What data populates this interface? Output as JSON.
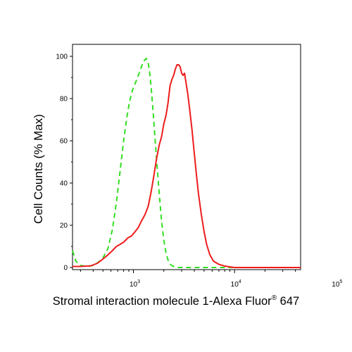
{
  "chart_data": {
    "type": "line",
    "title": "",
    "xlabel": "Stromal interaction molecule 1-Alexa Fluor",
    "xlabel_superscript": "®",
    "xlabel_suffix": " 647",
    "ylabel": "Cell Counts (% Max)",
    "x_scale": "log",
    "xlim": [
      250,
      45000
    ],
    "ylim": [
      0,
      100
    ],
    "y_ticks": [
      {
        "value": 0,
        "label": "0"
      },
      {
        "value": 20,
        "label": "20"
      },
      {
        "value": 40,
        "label": "40"
      },
      {
        "value": 60,
        "label": "60"
      },
      {
        "value": 80,
        "label": "80"
      },
      {
        "value": 100,
        "label": "100"
      }
    ],
    "x_ticks": [
      {
        "value": 1000,
        "base": "10",
        "exp": "3"
      },
      {
        "value": 10000,
        "base": "10",
        "exp": "4"
      },
      {
        "value": 100000,
        "base": "10",
        "exp": "5"
      }
    ],
    "grid": false,
    "legend": "none",
    "series": [
      {
        "color": "#33dd22",
        "line_style": "dashed",
        "points": [
          [
            250,
            8
          ],
          [
            270,
            3
          ],
          [
            300,
            1
          ],
          [
            350,
            0.5
          ],
          [
            400,
            1
          ],
          [
            450,
            2.5
          ],
          [
            500,
            4.5
          ],
          [
            560,
            9
          ],
          [
            620,
            18
          ],
          [
            680,
            31
          ],
          [
            740,
            46
          ],
          [
            800,
            60
          ],
          [
            860,
            71
          ],
          [
            920,
            79
          ],
          [
            980,
            84
          ],
          [
            1040,
            87
          ],
          [
            1100,
            90
          ],
          [
            1160,
            93
          ],
          [
            1220,
            96
          ],
          [
            1280,
            98
          ],
          [
            1340,
            99
          ],
          [
            1400,
            97
          ],
          [
            1450,
            92
          ],
          [
            1500,
            85
          ],
          [
            1560,
            75
          ],
          [
            1620,
            64
          ],
          [
            1700,
            50
          ],
          [
            1800,
            35
          ],
          [
            1900,
            22
          ],
          [
            2000,
            13
          ],
          [
            2100,
            7
          ],
          [
            2200,
            3.5
          ],
          [
            2350,
            1.2
          ],
          [
            2500,
            0.5
          ],
          [
            2800,
            0
          ],
          [
            45000,
            0
          ]
        ]
      },
      {
        "color": "#ee1c1c",
        "line_style": "solid",
        "points": [
          [
            250,
            0.5
          ],
          [
            300,
            0.5
          ],
          [
            380,
            0.8
          ],
          [
            440,
            2
          ],
          [
            500,
            4
          ],
          [
            560,
            6
          ],
          [
            620,
            8
          ],
          [
            680,
            10
          ],
          [
            740,
            11
          ],
          [
            800,
            12
          ],
          [
            880,
            14
          ],
          [
            960,
            15
          ],
          [
            1040,
            17
          ],
          [
            1120,
            19
          ],
          [
            1200,
            22
          ],
          [
            1300,
            25
          ],
          [
            1400,
            29
          ],
          [
            1500,
            36
          ],
          [
            1600,
            44
          ],
          [
            1700,
            52
          ],
          [
            1800,
            58
          ],
          [
            1900,
            62
          ],
          [
            2000,
            68
          ],
          [
            2100,
            72
          ],
          [
            2200,
            78
          ],
          [
            2300,
            86
          ],
          [
            2400,
            89
          ],
          [
            2500,
            91
          ],
          [
            2600,
            94
          ],
          [
            2700,
            96
          ],
          [
            2800,
            96
          ],
          [
            2900,
            95
          ],
          [
            3000,
            92
          ],
          [
            3100,
            91
          ],
          [
            3200,
            92
          ],
          [
            3300,
            88
          ],
          [
            3450,
            82
          ],
          [
            3600,
            75
          ],
          [
            3800,
            65
          ],
          [
            4000,
            54
          ],
          [
            4200,
            44
          ],
          [
            4400,
            35
          ],
          [
            4700,
            25
          ],
          [
            5000,
            17
          ],
          [
            5300,
            11
          ],
          [
            5700,
            6
          ],
          [
            6200,
            3
          ],
          [
            7000,
            1.5
          ],
          [
            8000,
            0.7
          ],
          [
            9000,
            0.3
          ],
          [
            10000,
            0
          ],
          [
            45000,
            0
          ]
        ]
      }
    ]
  }
}
